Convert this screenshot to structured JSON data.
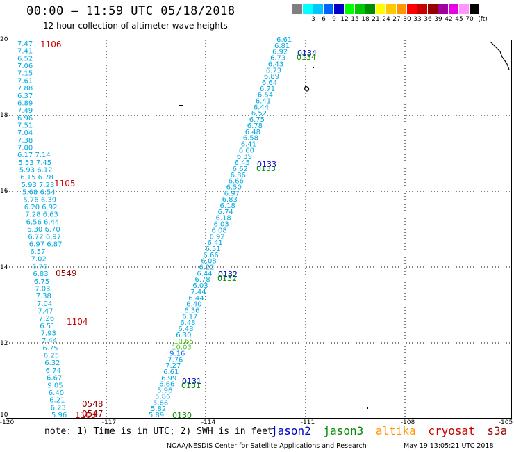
{
  "title": "00:00 – 11:59 UTC 05/18/2018",
  "subtitle": "12 hour collection of altimeter wave heights",
  "legend": {
    "unit": "(ft)",
    "items": [
      {
        "label": "",
        "color": "#7f7f7f"
      },
      {
        "label": "3",
        "color": "#00ffff"
      },
      {
        "label": "6",
        "color": "#00c8ff"
      },
      {
        "label": "9",
        "color": "#0064ff"
      },
      {
        "label": "12",
        "color": "#0000c8"
      },
      {
        "label": "15",
        "color": "#00ff00"
      },
      {
        "label": "18",
        "color": "#00c800"
      },
      {
        "label": "21",
        "color": "#008c00"
      },
      {
        "label": "24",
        "color": "#ffff00"
      },
      {
        "label": "27",
        "color": "#ffc800"
      },
      {
        "label": "30",
        "color": "#ff9600"
      },
      {
        "label": "33",
        "color": "#ff0000"
      },
      {
        "label": "36",
        "color": "#c80000"
      },
      {
        "label": "39",
        "color": "#960000"
      },
      {
        "label": "42",
        "color": "#a000a0"
      },
      {
        "label": "45",
        "color": "#e600e6"
      },
      {
        "label": "70",
        "color": "#ff96ff"
      },
      {
        "label": "",
        "color": "#000000"
      }
    ]
  },
  "lat_labels": [
    "20",
    "18",
    "16",
    "14",
    "12",
    "10"
  ],
  "lon_labels": [
    "-120",
    "-117",
    "-114",
    "-111",
    "-108",
    "-105"
  ],
  "note": "note: 1) Time is in UTC; 2) SWH is in feet",
  "satellites": [
    {
      "name": "jason2",
      "color": "#0000cc"
    },
    {
      "name": "jason3",
      "color": "#008c00"
    },
    {
      "name": "altika",
      "color": "#ff9600"
    },
    {
      "name": "cryosat",
      "color": "#cc0000"
    },
    {
      "name": "s3a",
      "color": "#960000"
    }
  ],
  "credit": "NOAA/NESDIS Center for Satellite Applications and Research",
  "timestamp": "May 19 13:05:21 UTC 2018",
  "west_track": {
    "values": [
      "7.47",
      "7.41",
      "6.52",
      "7.06",
      "7.15",
      "7.61",
      "7.88",
      "6.37",
      "6.89",
      "7.49",
      "6.96",
      "7.51",
      "7.04",
      "7.38",
      "7.00",
      "6.17 7.14",
      "5.53 7.45",
      "5.93 6.12",
      "6.15 6.78",
      "5.93 7.23",
      "5.68 6.54",
      "5.76 6.39",
      "6.20 6.92",
      "7.28 6.63",
      "6.56 6.44",
      "6.30 6.70",
      "6.72 6.97",
      "6.97 6.87",
      "6.57",
      "7.02",
      "6.76",
      "6.83",
      "6.75",
      "7.03",
      "7.38",
      "7.04",
      "7.47",
      "7.26",
      "6.51",
      "7.93",
      "7.44",
      "6.75",
      "6.25",
      "6.32",
      "6.74",
      "6.67",
      "9.05",
      "6.40",
      "6.21",
      "6.23",
      "5.96"
    ],
    "time_labels": [
      {
        "text": "1106",
        "color": "#cc0000"
      },
      {
        "text": "1105",
        "color": "#cc0000"
      },
      {
        "text": "0549",
        "color": "#960000"
      },
      {
        "text": "1104",
        "color": "#cc0000"
      },
      {
        "text": "0548",
        "color": "#960000"
      },
      {
        "text": "0547",
        "color": "#960000"
      },
      {
        "text": "1103",
        "color": "#cc0000"
      }
    ]
  },
  "east_track": {
    "values": [
      "6.61",
      "6.81",
      "6.92",
      "6.73",
      "6.43",
      "6.73",
      "6.89",
      "6.64",
      "6.71",
      "6.54",
      "6.41",
      "6.44",
      "6.52",
      "6.75",
      "6.78",
      "6.48",
      "6.58",
      "6.41",
      "6.60",
      "6.39",
      "6.45",
      "6.62",
      "6.86",
      "6.66",
      "6.50",
      "6.97",
      "6.83",
      "6.18",
      "6.74",
      "6.18",
      "6.03",
      "6.08",
      "6.92",
      "6.41",
      "6.51",
      "6.66",
      "6.08",
      "6.22",
      "6.44",
      "6.78",
      "6.03",
      "7.44",
      "6.44",
      "6.40",
      "6.36",
      "6.17",
      "6.48",
      "6.48",
      "6.30",
      "10.65",
      "10.03",
      "9.16",
      "7.76",
      "7.27",
      "6.61",
      "6.99",
      "6.66",
      "5.96",
      "5.86",
      "5.86",
      "5.82",
      "5.89"
    ],
    "time_labels": [
      {
        "text": "0134",
        "color": "#0000cc"
      },
      {
        "text": "0134",
        "color": "#008c00"
      },
      {
        "text": "0133",
        "color": "#0000cc"
      },
      {
        "text": "0133",
        "color": "#008c00"
      },
      {
        "text": "0132",
        "color": "#0000cc"
      },
      {
        "text": "0132",
        "color": "#008c00"
      },
      {
        "text": "0131",
        "color": "#0000cc"
      },
      {
        "text": "0131",
        "color": "#008c00"
      },
      {
        "text": "0130",
        "color": "#008c00"
      }
    ]
  }
}
